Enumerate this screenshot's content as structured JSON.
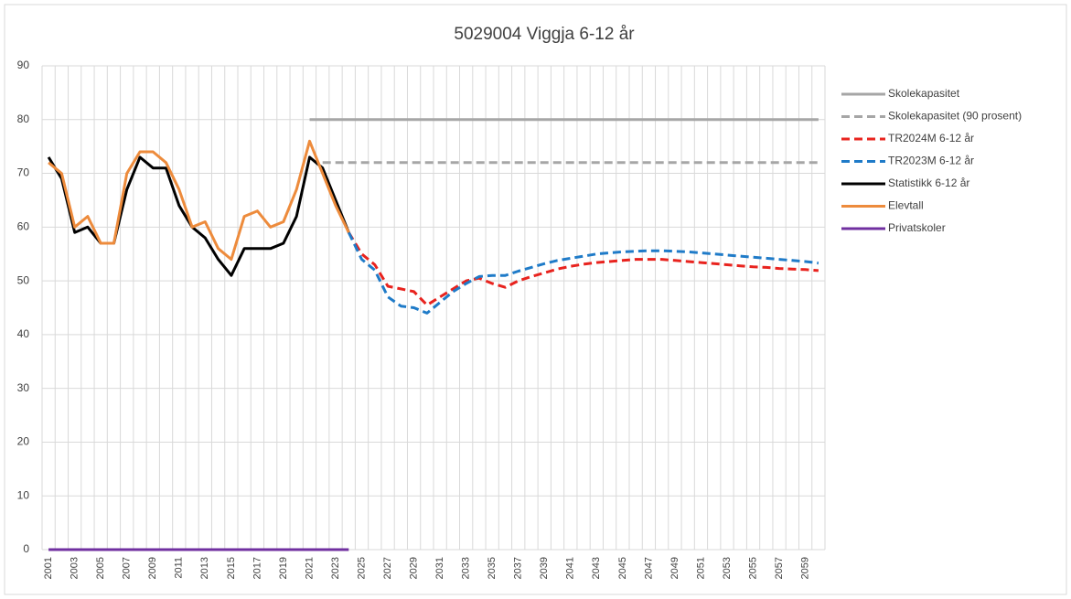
{
  "chart_data": {
    "type": "line",
    "title": "5029004 Viggja 6-12 år",
    "categories": [
      "2001",
      null,
      "2003",
      null,
      "2005",
      null,
      "2007",
      null,
      "2009",
      null,
      "2011",
      null,
      "2013",
      null,
      "2015",
      null,
      "2017",
      null,
      "2019",
      null,
      "2021",
      null,
      "2023",
      null,
      "2025",
      null,
      "2027",
      null,
      "2029",
      null,
      "2031",
      null,
      "2033",
      null,
      "2035",
      null,
      "2037",
      null,
      "2039",
      null,
      "2041",
      null,
      "2043",
      null,
      "2045",
      null,
      "2047",
      null,
      "2049",
      null,
      "2051",
      null,
      "2053",
      null,
      "2055",
      null,
      "2057",
      null,
      "2059",
      null
    ],
    "ylim": [
      0,
      90
    ],
    "yticks": [
      0,
      10,
      20,
      30,
      40,
      50,
      60,
      70,
      80,
      90
    ],
    "grid": true,
    "legend": "right",
    "series": [
      {
        "name": "Skolekapasitet",
        "color": "#a6a6a6",
        "dash": false,
        "values": [
          null,
          null,
          null,
          null,
          null,
          null,
          null,
          null,
          null,
          null,
          null,
          null,
          null,
          null,
          null,
          null,
          null,
          null,
          null,
          null,
          80,
          80,
          80,
          80,
          80,
          80,
          80,
          80,
          80,
          80,
          80,
          80,
          80,
          80,
          80,
          80,
          80,
          80,
          80,
          80,
          80,
          80,
          80,
          80,
          80,
          80,
          80,
          80,
          80,
          80,
          80,
          80,
          80,
          80,
          80,
          80,
          80,
          80,
          80,
          80
        ]
      },
      {
        "name": "Skolekapasitet (90 prosent)",
        "color": "#a6a6a6",
        "dash": true,
        "values": [
          null,
          null,
          null,
          null,
          null,
          null,
          null,
          null,
          null,
          null,
          null,
          null,
          null,
          null,
          null,
          null,
          null,
          null,
          null,
          null,
          null,
          72,
          72,
          72,
          72,
          72,
          72,
          72,
          72,
          72,
          72,
          72,
          72,
          72,
          72,
          72,
          72,
          72,
          72,
          72,
          72,
          72,
          72,
          72,
          72,
          72,
          72,
          72,
          72,
          72,
          72,
          72,
          72,
          72,
          72,
          72,
          72,
          72,
          72,
          72
        ]
      },
      {
        "name": "TR2024M 6-12 år",
        "color": "#e8231e",
        "dash": true,
        "values": [
          null,
          null,
          null,
          null,
          null,
          null,
          null,
          null,
          null,
          null,
          null,
          null,
          null,
          null,
          null,
          null,
          null,
          null,
          null,
          null,
          null,
          null,
          null,
          59,
          55,
          53,
          49,
          48.5,
          48,
          45.5,
          47,
          48.5,
          50,
          50.5,
          49.5,
          48.8,
          50,
          50.8,
          51.5,
          52.2,
          52.7,
          53.1,
          53.4,
          53.6,
          53.8,
          54,
          54,
          54,
          53.8,
          53.6,
          53.4,
          53.2,
          53,
          52.8,
          52.6,
          52.5,
          52.3,
          52.2,
          52.1,
          51.9
        ]
      },
      {
        "name": "TR2023M 6-12 år",
        "color": "#1f7bc8",
        "dash": true,
        "values": [
          null,
          null,
          null,
          null,
          null,
          null,
          null,
          null,
          null,
          null,
          null,
          null,
          null,
          null,
          null,
          null,
          null,
          null,
          null,
          null,
          null,
          null,
          null,
          59,
          54,
          52,
          47,
          45.3,
          45,
          44,
          46,
          48,
          49.5,
          50.8,
          51,
          51,
          51.8,
          52.5,
          53.2,
          53.8,
          54.2,
          54.6,
          55,
          55.2,
          55.4,
          55.5,
          55.6,
          55.6,
          55.5,
          55.4,
          55.2,
          55,
          54.8,
          54.6,
          54.4,
          54.2,
          54,
          53.8,
          53.6,
          53.3
        ]
      },
      {
        "name": "Statistikk 6-12 år",
        "color": "#000000",
        "dash": false,
        "values": [
          73,
          69,
          59,
          60,
          57,
          57,
          67,
          73,
          71,
          71,
          64,
          60,
          58,
          54,
          51,
          56,
          56,
          56,
          57,
          62,
          73,
          71,
          65,
          59,
          null,
          null,
          null,
          null,
          null,
          null,
          null,
          null,
          null,
          null,
          null,
          null,
          null,
          null,
          null,
          null,
          null,
          null,
          null,
          null,
          null,
          null,
          null,
          null,
          null,
          null,
          null,
          null,
          null,
          null,
          null,
          null,
          null,
          null,
          null,
          null
        ]
      },
      {
        "name": "Elevtall",
        "color": "#ed8b3c",
        "dash": false,
        "values": [
          72,
          70,
          60,
          62,
          57,
          57,
          70,
          74,
          74,
          72,
          67,
          60,
          61,
          56,
          54,
          62,
          63,
          60,
          61,
          67,
          76,
          70,
          64,
          59,
          null,
          null,
          null,
          null,
          null,
          null,
          null,
          null,
          null,
          null,
          null,
          null,
          null,
          null,
          null,
          null,
          null,
          null,
          null,
          null,
          null,
          null,
          null,
          null,
          null,
          null,
          null,
          null,
          null,
          null,
          null,
          null,
          null,
          null,
          null,
          null
        ]
      },
      {
        "name": "Privatskoler",
        "color": "#7030a0",
        "dash": false,
        "values": [
          0,
          0,
          0,
          0,
          0,
          0,
          0,
          0,
          0,
          0,
          0,
          0,
          0,
          0,
          0,
          0,
          0,
          0,
          0,
          0,
          0,
          0,
          0,
          0,
          null,
          null,
          null,
          null,
          null,
          null,
          null,
          null,
          null,
          null,
          null,
          null,
          null,
          null,
          null,
          null,
          null,
          null,
          null,
          null,
          null,
          null,
          null,
          null,
          null,
          null,
          null,
          null,
          null,
          null,
          null,
          null,
          null,
          null,
          null,
          null
        ]
      }
    ]
  }
}
